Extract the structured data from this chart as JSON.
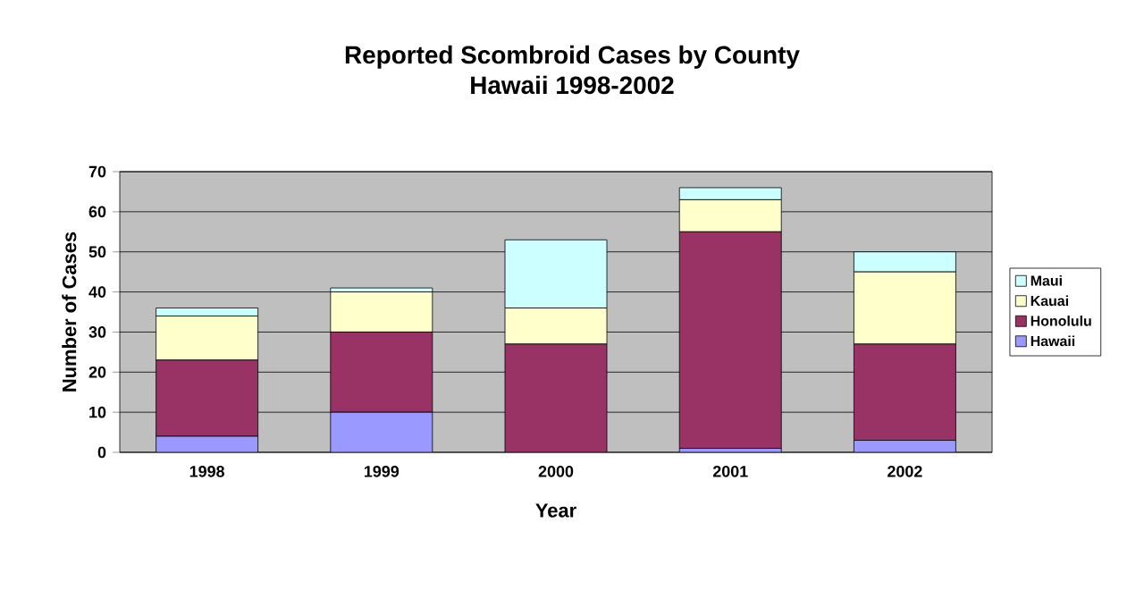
{
  "chart_data": {
    "type": "bar",
    "title": "Reported Scombroid Cases by County\nHawaii 1998-2002",
    "xlabel": "Year",
    "ylabel": "Number of Cases",
    "categories": [
      "1998",
      "1999",
      "2000",
      "2001",
      "2002"
    ],
    "stacked": true,
    "series": [
      {
        "name": "Hawaii",
        "color": "#9999ff",
        "values": [
          4,
          10,
          0,
          1,
          3
        ]
      },
      {
        "name": "Honolulu",
        "color": "#993366",
        "values": [
          19,
          20,
          27,
          54,
          24
        ]
      },
      {
        "name": "Kauai",
        "color": "#ffffcc",
        "values": [
          11,
          10,
          9,
          8,
          18
        ]
      },
      {
        "name": "Maui",
        "color": "#ccffff",
        "values": [
          2,
          1,
          17,
          3,
          5
        ]
      }
    ],
    "ylim": [
      0,
      70
    ],
    "yticks": [
      0,
      10,
      20,
      30,
      40,
      50,
      60,
      70
    ],
    "grid": "y",
    "legend": "right"
  }
}
